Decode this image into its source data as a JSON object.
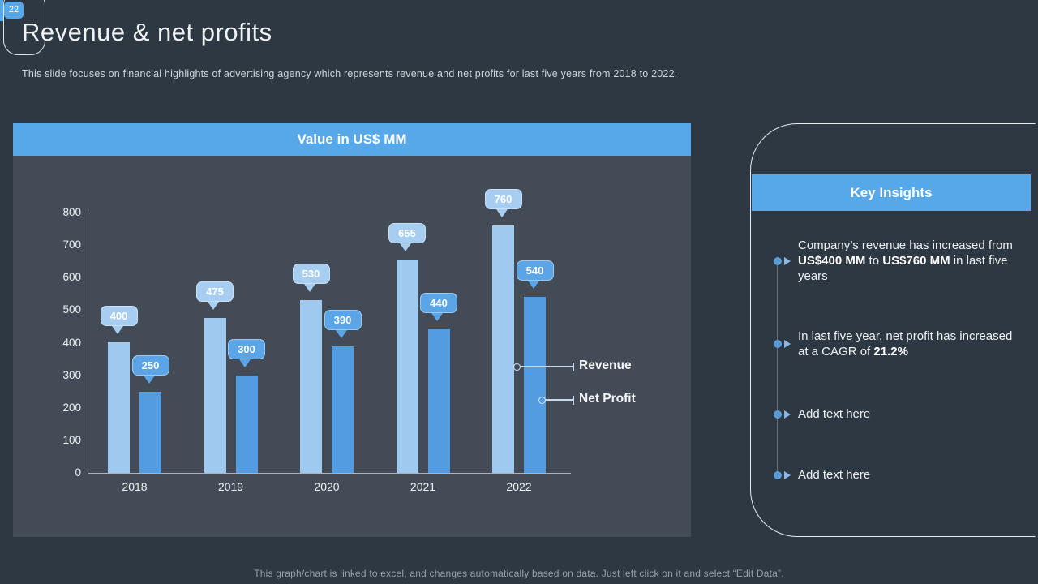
{
  "slide": {
    "number": "22",
    "title": "Revenue & net profits",
    "subtitle": "This slide focuses on financial highlights of advertising agency which represents revenue and net profits for last five years from 2018 to 2022.",
    "footer": "This graph/chart is linked to excel, and changes automatically based on data. Just left click on it and select “Edit Data”."
  },
  "chart_data": {
    "type": "bar",
    "title": "Value in US$ MM",
    "categories": [
      "2018",
      "2019",
      "2020",
      "2021",
      "2022"
    ],
    "series": [
      {
        "name": "Revenue",
        "values": [
          400,
          475,
          530,
          655,
          760
        ],
        "bar_color": "#9fc9ef",
        "callout_color": "#a7cdf1",
        "callout_border": "#c9e0f5"
      },
      {
        "name": "Net Profit",
        "values": [
          250,
          300,
          390,
          440,
          540
        ],
        "bar_color": "#549ce2",
        "callout_color": "#5ba5e7",
        "callout_border": "#9dc8ee"
      }
    ],
    "ylim": [
      0,
      800
    ],
    "ytick_step": 100,
    "grid": false,
    "legend_position": "right-of-last-bars",
    "data_labels": true
  },
  "insights": {
    "title": "Key Insights",
    "items": [
      {
        "segments": [
          {
            "t": "Company’s revenue has increased from "
          },
          {
            "t": "US$400 MM",
            "b": true
          },
          {
            "t": " to "
          },
          {
            "t": "US$760 MM",
            "b": true
          },
          {
            "t": " in last five years"
          }
        ]
      },
      {
        "segments": [
          {
            "t": "In last five year, net profit has increased at a CAGR of "
          },
          {
            "t": "21.2%",
            "b": true
          }
        ]
      },
      {
        "segments": [
          {
            "t": "Add text here"
          }
        ]
      },
      {
        "segments": [
          {
            "t": "Add text here"
          }
        ]
      }
    ]
  },
  "colors": {
    "background": "#2d3842",
    "chart_panel": "#434b56",
    "accent_blue": "#57a8e8",
    "revenue_bar": "#9fc9ef",
    "net_profit_bar": "#549ce2"
  }
}
